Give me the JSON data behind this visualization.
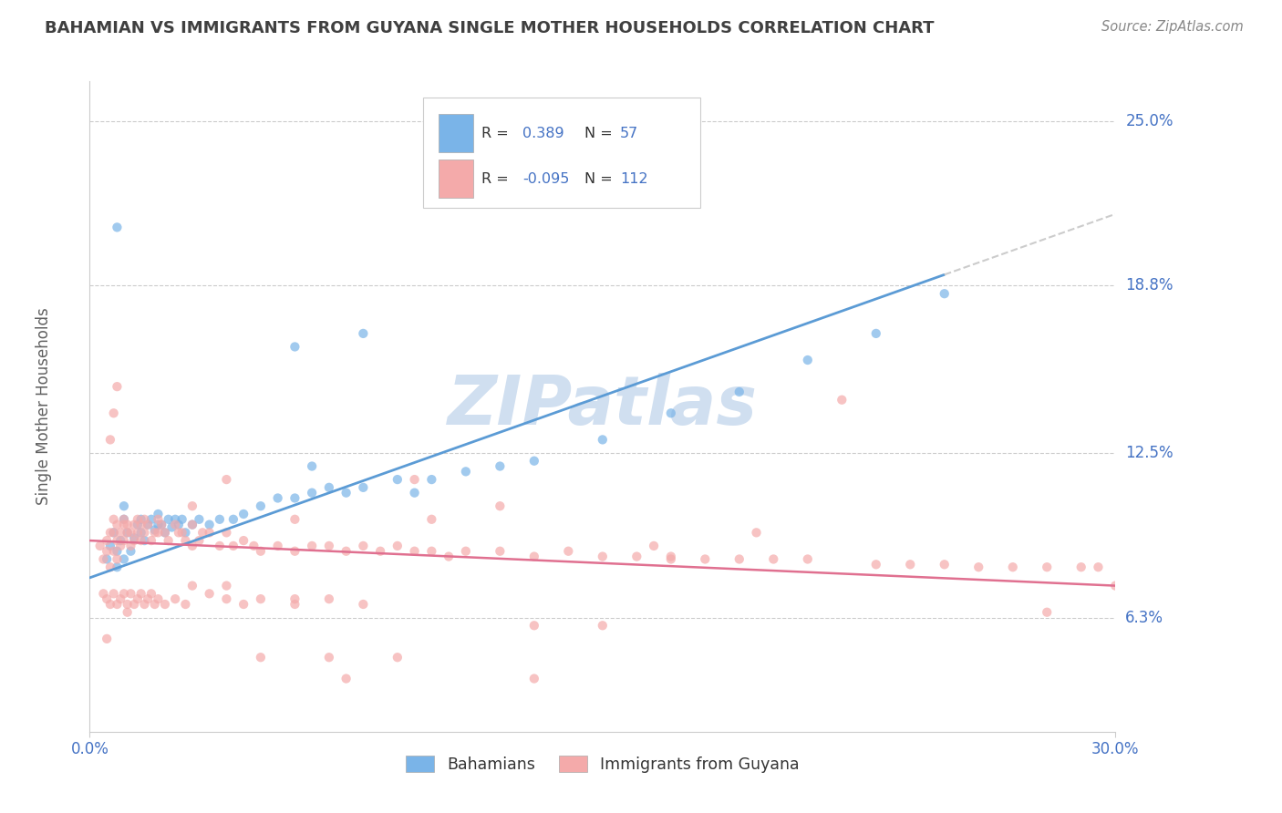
{
  "title": "BAHAMIAN VS IMMIGRANTS FROM GUYANA SINGLE MOTHER HOUSEHOLDS CORRELATION CHART",
  "source_text": "Source: ZipAtlas.com",
  "ylabel": "Single Mother Households",
  "xlim": [
    0.0,
    0.3
  ],
  "ylim": [
    0.02,
    0.265
  ],
  "ytick_positions": [
    0.063,
    0.125,
    0.188,
    0.25
  ],
  "ytick_labels": [
    "6.3%",
    "12.5%",
    "18.8%",
    "25.0%"
  ],
  "xtick_positions": [
    0.0,
    0.3
  ],
  "xtick_labels": [
    "0.0%",
    "30.0%"
  ],
  "r_blue": 0.389,
  "n_blue": 57,
  "r_pink": -0.095,
  "n_pink": 112,
  "blue_color": "#7ab4e8",
  "pink_color": "#f4aaaa",
  "trend_blue": "#5b9bd5",
  "trend_pink": "#e07090",
  "trend_blue_solid_end": 0.25,
  "watermark_color": "#d0dff0",
  "title_color": "#404040",
  "label_color": "#4472c4",
  "source_color": "#888888",
  "background_color": "#ffffff",
  "grid_color": "#cccccc",
  "blue_trend_x0": 0.0,
  "blue_trend_y0": 0.078,
  "blue_trend_x1": 0.3,
  "blue_trend_y1": 0.215,
  "pink_trend_x0": 0.0,
  "pink_trend_y0": 0.092,
  "pink_trend_x1": 0.3,
  "pink_trend_y1": 0.075
}
